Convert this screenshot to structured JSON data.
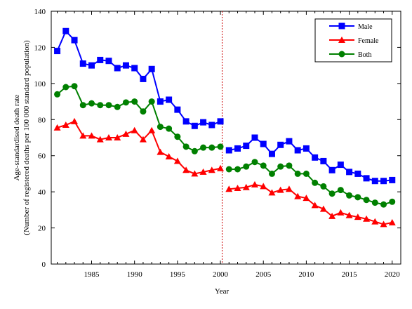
{
  "chart_data": {
    "type": "line",
    "xlabel": "Year",
    "ylabel_lines": [
      "Age-standardised death rate",
      "(Number of registered deaths per 100 000 standard population)"
    ],
    "ylim": [
      0,
      140
    ],
    "yticks": [
      0,
      20,
      40,
      60,
      80,
      100,
      120,
      140
    ],
    "xlim": [
      1980.3,
      2021
    ],
    "xticks": [
      1985,
      1990,
      1995,
      2000,
      2005,
      2010,
      2015,
      2020
    ],
    "break_at": 2000.2,
    "legend_position": "top-right",
    "series": [
      {
        "name": "Male",
        "color": "#0000ff",
        "marker": "square",
        "x": [
          1981,
          1982,
          1983,
          1984,
          1985,
          1986,
          1987,
          1988,
          1989,
          1990,
          1991,
          1992,
          1993,
          1994,
          1995,
          1996,
          1997,
          1998,
          1999,
          2000,
          2001,
          2002,
          2003,
          2004,
          2005,
          2006,
          2007,
          2008,
          2009,
          2010,
          2011,
          2012,
          2013,
          2014,
          2015,
          2016,
          2017,
          2018,
          2019,
          2020
        ],
        "values": [
          118,
          129,
          124,
          111,
          110,
          113,
          112.5,
          108.5,
          110,
          108.5,
          102.5,
          108,
          90,
          91,
          85.5,
          79,
          76.5,
          78.5,
          77,
          79,
          63,
          64,
          65.5,
          70,
          66.5,
          61,
          66,
          68,
          63,
          64,
          59,
          57,
          52,
          55,
          51,
          50,
          47.5,
          46,
          46,
          46.5
        ]
      },
      {
        "name": "Female",
        "color": "#ff0000",
        "marker": "triangle",
        "x": [
          1981,
          1982,
          1983,
          1984,
          1985,
          1986,
          1987,
          1988,
          1989,
          1990,
          1991,
          1992,
          1993,
          1994,
          1995,
          1996,
          1997,
          1998,
          1999,
          2000,
          2001,
          2002,
          2003,
          2004,
          2005,
          2006,
          2007,
          2008,
          2009,
          2010,
          2011,
          2012,
          2013,
          2014,
          2015,
          2016,
          2017,
          2018,
          2019,
          2020
        ],
        "values": [
          75.5,
          77,
          79,
          71,
          71,
          69,
          70,
          70,
          72,
          74,
          69,
          74,
          62,
          59.5,
          57,
          52,
          50,
          51,
          52,
          53,
          41.5,
          42,
          42.5,
          44,
          43,
          39.5,
          41,
          41.5,
          37.5,
          36.5,
          32.5,
          30.5,
          26.5,
          28.5,
          27,
          26,
          25,
          23.5,
          22,
          23
        ]
      },
      {
        "name": "Both",
        "color": "#008000",
        "marker": "circle",
        "x": [
          1981,
          1982,
          1983,
          1984,
          1985,
          1986,
          1987,
          1988,
          1989,
          1990,
          1991,
          1992,
          1993,
          1994,
          1995,
          1996,
          1997,
          1998,
          1999,
          2000,
          2001,
          2002,
          2003,
          2004,
          2005,
          2006,
          2007,
          2008,
          2009,
          2010,
          2011,
          2012,
          2013,
          2014,
          2015,
          2016,
          2017,
          2018,
          2019,
          2020
        ],
        "values": [
          94,
          98,
          98.5,
          88,
          89,
          88,
          88,
          87,
          89.5,
          90,
          84.5,
          90,
          76,
          75,
          70.5,
          65,
          62.5,
          64.5,
          64.5,
          65,
          52.5,
          52.5,
          54,
          56.5,
          54.5,
          50,
          54,
          54.5,
          50,
          50,
          45,
          43,
          39,
          41,
          38,
          37,
          35.5,
          34,
          33,
          34.5
        ]
      }
    ]
  }
}
